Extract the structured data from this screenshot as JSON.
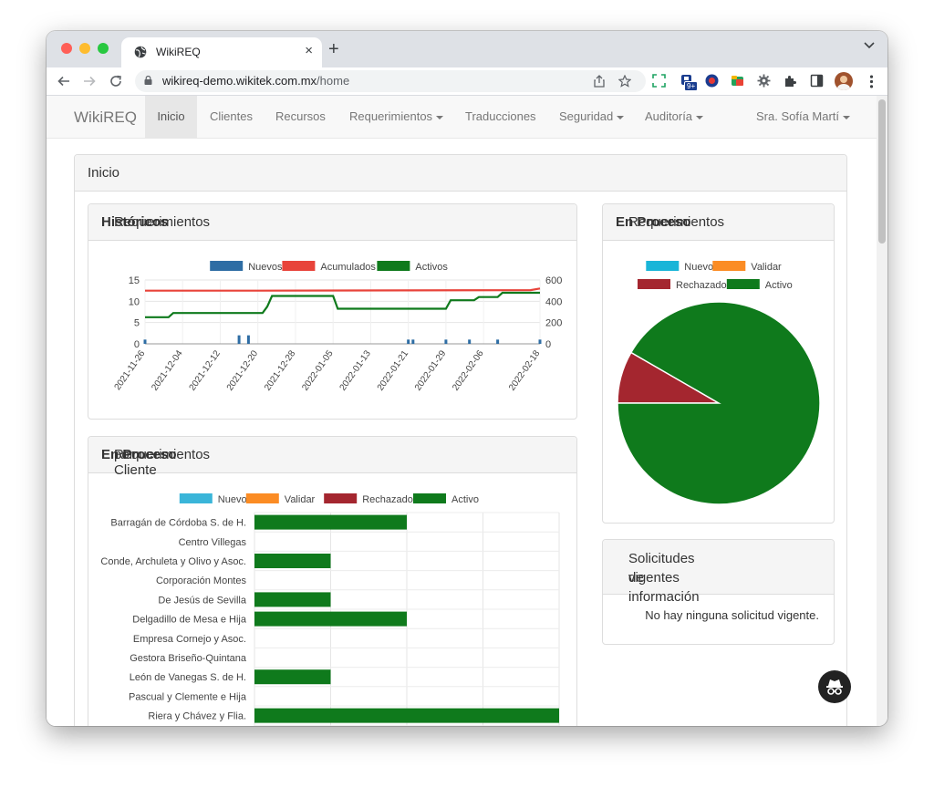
{
  "browser": {
    "tab_title": "WikiREQ",
    "url_host": "wikireq-demo.wikitek.com.mx",
    "url_path": "/home",
    "ext_badge": "9+"
  },
  "navbar": {
    "brand": "WikiREQ",
    "items": [
      {
        "label": "Inicio",
        "active": true
      },
      {
        "label": "Clientes"
      },
      {
        "label": "Recursos"
      },
      {
        "label": "Requerimientos",
        "dropdown": true
      },
      {
        "label": "Traducciones"
      },
      {
        "label": "Seguridad",
        "dropdown": true
      },
      {
        "label": "Auditoría",
        "dropdown": true
      }
    ],
    "user": "Sra. Sofía Martí"
  },
  "page": {
    "title": "Inicio"
  },
  "panels": {
    "historicos": {
      "title_a": "Requerimientos ",
      "title_b": "Históricos"
    },
    "por_cliente": {
      "title_a": "Requerimientos ",
      "title_b": "En Proceso",
      "title_c": " por Cliente"
    },
    "en_proceso": {
      "title_a": "Requerimientos ",
      "title_b": "En Proceso",
      "title_c": ":"
    },
    "solicitudes": {
      "title_l1": "Solicitudes de información",
      "title_l2": "vigentes",
      "empty": "No hay ninguna solicitud vigente."
    }
  },
  "chart_data": [
    {
      "type": "line",
      "legend": [
        {
          "name": "Nuevos",
          "color": "#2e6da4"
        },
        {
          "name": "Acumulados",
          "color": "#e8433a"
        },
        {
          "name": "Activos",
          "color": "#0f7a1c"
        }
      ],
      "y_left": {
        "ticks": [
          0,
          5,
          10,
          15
        ]
      },
      "y_right": {
        "ticks": [
          0,
          200,
          400,
          600
        ]
      },
      "x_ticks": [
        "2021-11-26",
        "2021-12-04",
        "2021-12-12",
        "2021-12-20",
        "2021-12-28",
        "2022-01-05",
        "2022-01-13",
        "2022-01-21",
        "2022-01-29",
        "2022-02-06",
        "2022-02-18"
      ],
      "series": [
        {
          "name": "Nuevos",
          "kind": "bar",
          "points": [
            [
              "2021-11-26",
              1
            ],
            [
              "2021-12-16",
              2
            ],
            [
              "2021-12-18",
              2
            ],
            [
              "2022-01-21",
              1
            ],
            [
              "2022-01-22",
              1
            ],
            [
              "2022-01-29",
              1
            ],
            [
              "2022-02-03",
              1
            ],
            [
              "2022-02-09",
              1
            ],
            [
              "2022-02-18",
              1
            ]
          ]
        },
        {
          "name": "Acumulados",
          "kind": "line",
          "points": [
            [
              "2021-11-26",
              500
            ],
            [
              "2021-12-20",
              500
            ],
            [
              "2022-02-16",
              505
            ],
            [
              "2022-02-18",
              520
            ]
          ]
        },
        {
          "name": "Activos",
          "kind": "line",
          "points": [
            [
              "2021-11-26",
              250
            ],
            [
              "2021-12-01",
              250
            ],
            [
              "2021-12-02",
              290
            ],
            [
              "2021-12-21",
              290
            ],
            [
              "2021-12-22",
              350
            ],
            [
              "2021-12-23",
              450
            ],
            [
              "2022-01-05",
              450
            ],
            [
              "2022-01-06",
              330
            ],
            [
              "2022-01-29",
              330
            ],
            [
              "2022-01-30",
              410
            ],
            [
              "2022-02-04",
              410
            ],
            [
              "2022-02-05",
              440
            ],
            [
              "2022-02-09",
              440
            ],
            [
              "2022-02-10",
              480
            ],
            [
              "2022-02-18",
              480
            ]
          ]
        }
      ]
    },
    {
      "type": "pie",
      "legend": [
        {
          "name": "Nuevo",
          "color": "#19b5d8"
        },
        {
          "name": "Validar",
          "color": "#fb8c24"
        },
        {
          "name": "Rechazado",
          "color": "#a4262f"
        },
        {
          "name": "Activo",
          "color": "#0f7a1c"
        }
      ],
      "values": [
        0,
        0,
        1,
        11
      ]
    },
    {
      "type": "bar",
      "orientation": "horizontal",
      "stacked": true,
      "legend": [
        {
          "name": "Nuevo",
          "color": "#3ab5d9"
        },
        {
          "name": "Validar",
          "color": "#fb8c24"
        },
        {
          "name": "Rechazado",
          "color": "#a4262f"
        },
        {
          "name": "Activo",
          "color": "#0f7a1c"
        }
      ],
      "xlim": [
        0,
        4
      ],
      "categories": [
        "Barragán de Córdoba S. de H.",
        "Centro Villegas",
        "Conde, Archuleta y Olivo y Asoc.",
        "Corporación Montes",
        "De Jesús de Sevilla",
        "Delgadillo de Mesa e Hija",
        "Empresa Cornejo y Asoc.",
        "Gestora Briseño-Quintana",
        "León de Vanegas S. de H.",
        "Pascual y Clemente e Hija",
        "Riera y Chávez y Flia."
      ],
      "series": [
        {
          "name": "Activo",
          "values": [
            2,
            0,
            1,
            0,
            1,
            2,
            0,
            0,
            1,
            0,
            4
          ]
        }
      ]
    }
  ]
}
